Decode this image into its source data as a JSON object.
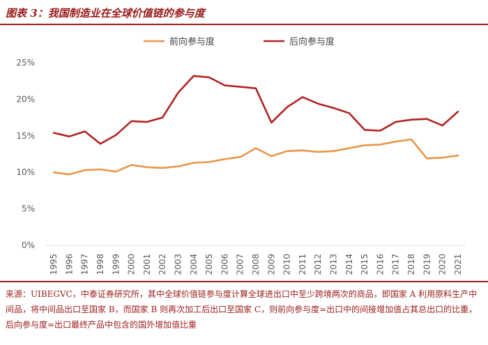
{
  "figure_title": "图表 3：我国制造业在全球价值链的参与度",
  "source_note": "来源：UIBEGVC，中泰证券研究所，其中全球价值链参与度计算全球进出口中至少跨境两次的商品，即国家 A 利用原料生产中间品，将中间品出口至国家 B，而国家 B 则再次加工后出口至国家 C，则前向参与度=出口中的间接增加值占其总出口的比重，后向参与度=出口最终产品中包含的国外增加值比重",
  "colors": {
    "forward": "#E8964B",
    "backward": "#B22222",
    "accent": "#9b1b1b"
  },
  "chart_data": {
    "type": "line",
    "title": "",
    "xlabel": "",
    "ylabel": "",
    "ylim": [
      0,
      25
    ],
    "yticks": [
      "0%",
      "5%",
      "10%",
      "15%",
      "20%",
      "25%"
    ],
    "grid": false,
    "legend_position": "top",
    "x": [
      "1995",
      "1996",
      "1997",
      "1998",
      "1999",
      "2000",
      "2001",
      "2002",
      "2003",
      "2004",
      "2005",
      "2006",
      "2007",
      "2008",
      "2009",
      "2010",
      "2011",
      "2012",
      "2013",
      "2014",
      "2015",
      "2016",
      "2017",
      "2018",
      "2019",
      "2020",
      "2021"
    ],
    "series": [
      {
        "name": "前向参与度",
        "color": "#E8964B",
        "values": [
          10.0,
          9.7,
          10.3,
          10.4,
          10.1,
          11.0,
          10.7,
          10.6,
          10.8,
          11.3,
          11.4,
          11.8,
          12.1,
          13.3,
          12.2,
          12.9,
          13.0,
          12.8,
          12.9,
          13.3,
          13.7,
          13.8,
          14.2,
          14.5,
          11.9,
          12.0,
          12.3
        ]
      },
      {
        "name": "后向参与度",
        "color": "#B22222",
        "values": [
          15.4,
          14.9,
          15.6,
          13.9,
          15.1,
          17.0,
          16.9,
          17.5,
          20.9,
          23.2,
          23.0,
          21.9,
          21.7,
          21.5,
          16.8,
          18.9,
          20.3,
          19.4,
          18.8,
          18.1,
          15.8,
          15.7,
          16.9,
          17.2,
          17.3,
          16.4,
          18.3
        ]
      }
    ]
  }
}
